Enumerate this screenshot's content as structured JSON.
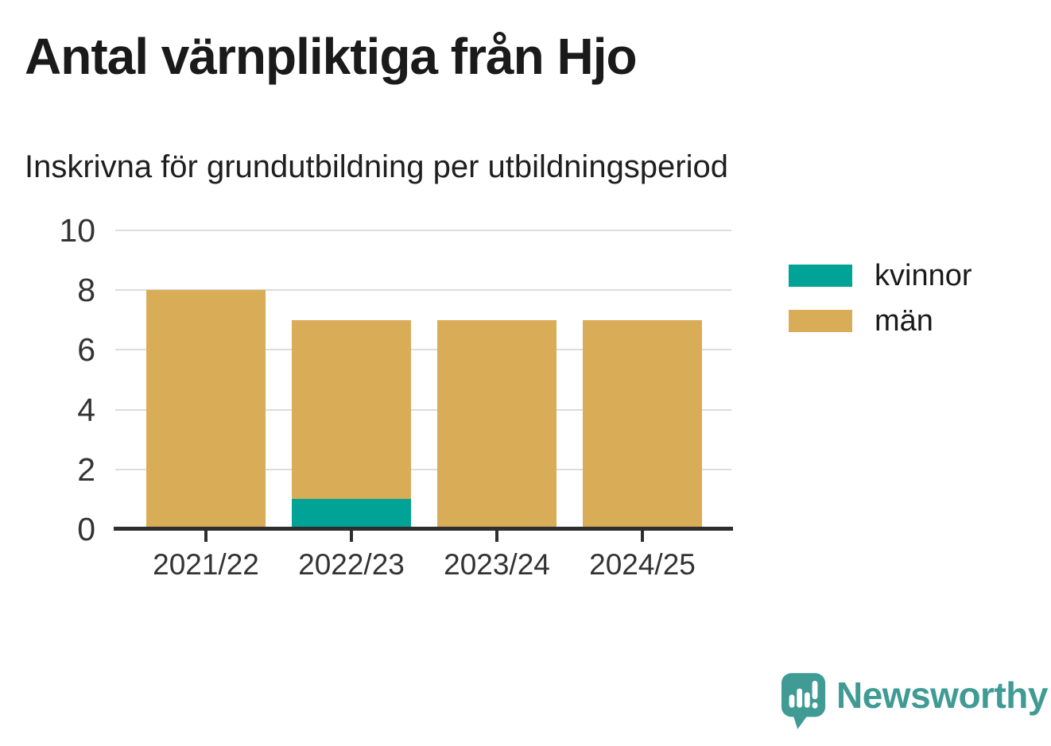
{
  "title": "Antal värnpliktiga från Hjo",
  "subtitle": "Inskrivna för grundutbildning per utbildningsperiod",
  "chart_data": {
    "type": "bar",
    "stacked": true,
    "title": "Antal värnpliktiga från Hjo",
    "subtitle": "Inskrivna för grundutbildning per utbildningsperiod",
    "categories": [
      "2021/22",
      "2022/23",
      "2023/24",
      "2024/25"
    ],
    "series": [
      {
        "name": "kvinnor",
        "color": "#00A396",
        "values": [
          0,
          1,
          0,
          0
        ]
      },
      {
        "name": "män",
        "color": "#D9AC58",
        "values": [
          8,
          6,
          7,
          7
        ]
      }
    ],
    "totals": [
      8,
      7,
      7,
      7
    ],
    "xlabel": "",
    "ylabel": "",
    "ylim": [
      0,
      10
    ],
    "yticks": [
      0,
      2,
      4,
      6,
      8,
      10
    ],
    "grid": true,
    "legend_position": "right"
  },
  "legend": {
    "items": [
      {
        "label": "kvinnor",
        "color": "#00A396"
      },
      {
        "label": "män",
        "color": "#D9AC58"
      }
    ]
  },
  "footer": {
    "brand": "Newsworthy"
  },
  "colors": {
    "series_kvinnor": "#00A396",
    "series_man": "#D9AC58",
    "grid": "#DCDCDC",
    "axis": "#2E2E2E",
    "tick_text": "#333333",
    "title_text": "#1A1A1A",
    "brand_teal": "#3F9B94",
    "background": "#FFFFFF"
  }
}
